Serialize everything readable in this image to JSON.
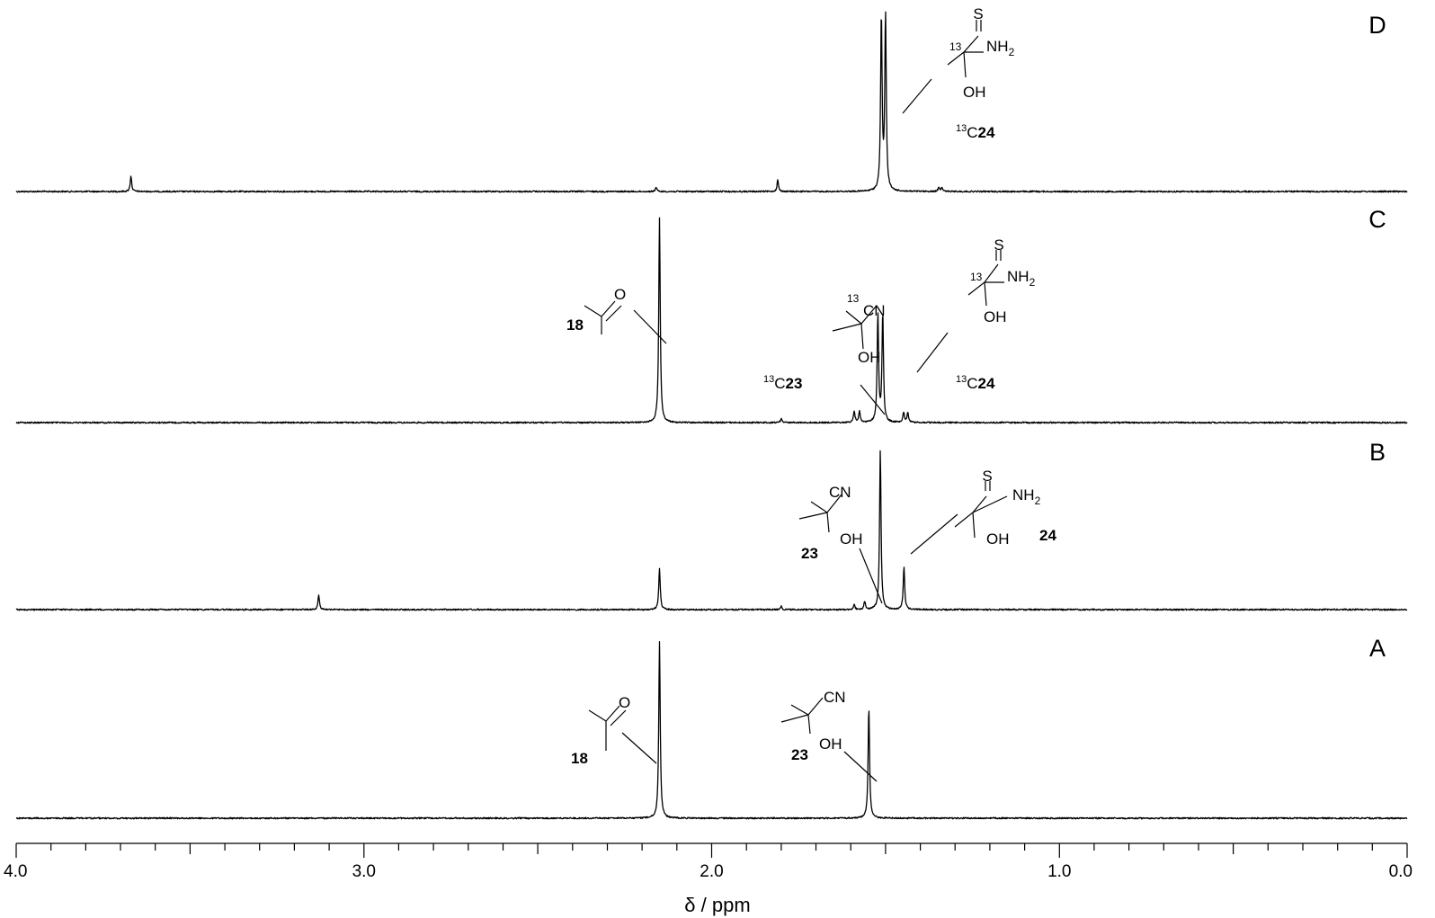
{
  "chart_data": {
    "type": "line",
    "xlabel": "δ / ppm",
    "x_reversed": true,
    "xlim": [
      4.0,
      0.0
    ],
    "x_ticks": [
      {
        "value": 4.0,
        "label": "4.0"
      },
      {
        "value": 3.0,
        "label": "3.0"
      },
      {
        "value": 2.0,
        "label": "2.0"
      },
      {
        "value": 1.0,
        "label": "1.0"
      },
      {
        "value": 0.0,
        "label": "0.0"
      }
    ],
    "minor_tick_step": 0.1,
    "spectra": [
      {
        "letter": "D",
        "peaks": [
          {
            "ppm": 3.67,
            "height": 0.09
          },
          {
            "ppm": 2.16,
            "height": 0.025
          },
          {
            "ppm": 1.81,
            "height": 0.065
          },
          {
            "ppm": 1.512,
            "height": 1.0
          },
          {
            "ppm": 1.5,
            "height": 1.0
          },
          {
            "ppm": 1.347,
            "height": 0.025
          },
          {
            "ppm": 1.338,
            "height": 0.025
          }
        ],
        "annotations": [
          {
            "atoms": [
              "S",
              "NH",
              "2",
              "OH",
              "13"
            ],
            "compound": "24",
            "isotope": "13",
            "element": "C"
          }
        ]
      },
      {
        "letter": "C",
        "peaks": [
          {
            "ppm": 2.15,
            "height": 1.0
          },
          {
            "ppm": 1.8,
            "height": 0.02
          },
          {
            "ppm": 1.59,
            "height": 0.055
          },
          {
            "ppm": 1.575,
            "height": 0.055
          },
          {
            "ppm": 1.522,
            "height": 0.53
          },
          {
            "ppm": 1.508,
            "height": 0.53
          },
          {
            "ppm": 1.448,
            "height": 0.05
          },
          {
            "ppm": 1.436,
            "height": 0.05
          }
        ],
        "annotations": [
          {
            "atoms": [
              "O"
            ],
            "compound": "18"
          },
          {
            "atoms": [
              "CN",
              "OH",
              "13"
            ],
            "compound": "23",
            "isotope": "13",
            "element": "C"
          },
          {
            "atoms": [
              "S",
              "NH",
              "2",
              "OH",
              "13"
            ],
            "compound": "24",
            "isotope": "13",
            "element": "C"
          }
        ]
      },
      {
        "letter": "B",
        "peaks": [
          {
            "ppm": 3.13,
            "height": 0.09
          },
          {
            "ppm": 2.15,
            "height": 0.26
          },
          {
            "ppm": 1.8,
            "height": 0.02
          },
          {
            "ppm": 1.59,
            "height": 0.03
          },
          {
            "ppm": 1.56,
            "height": 0.05
          },
          {
            "ppm": 1.515,
            "height": 1.0
          },
          {
            "ppm": 1.447,
            "height": 0.27
          }
        ],
        "annotations": [
          {
            "atoms": [
              "CN",
              "OH"
            ],
            "compound": "23"
          },
          {
            "atoms": [
              "S",
              "NH",
              "2",
              "OH"
            ],
            "compound": "24"
          }
        ]
      },
      {
        "letter": "A",
        "peaks": [
          {
            "ppm": 2.15,
            "height": 1.0
          },
          {
            "ppm": 1.548,
            "height": 0.63
          }
        ],
        "annotations": [
          {
            "atoms": [
              "O"
            ],
            "compound": "18"
          },
          {
            "atoms": [
              "CN",
              "OH"
            ],
            "compound": "23"
          }
        ]
      }
    ]
  }
}
